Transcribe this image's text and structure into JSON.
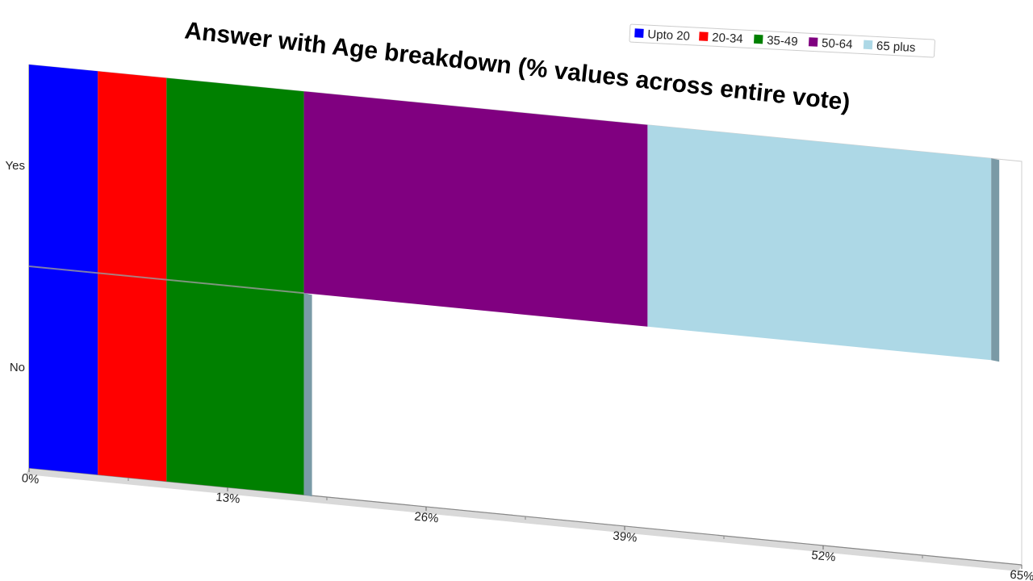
{
  "chart_data": {
    "type": "bar",
    "orientation": "horizontal",
    "stacked": true,
    "title": "Answer with Age breakdown (% values across entire vote)",
    "xlabel": "",
    "ylabel": "",
    "categories": [
      "Yes",
      "No"
    ],
    "x_ticks": [
      "0%",
      "13%",
      "26%",
      "39%",
      "52%",
      "65%"
    ],
    "xlim": [
      0,
      65
    ],
    "legend_position": "top-right",
    "grid": false,
    "series": [
      {
        "name": "Upto 20",
        "color": "#0000ff",
        "values": [
          4.5,
          4.5
        ]
      },
      {
        "name": "20-34",
        "color": "#ff0000",
        "values": [
          4.5,
          4.5
        ]
      },
      {
        "name": "35-49",
        "color": "#008000",
        "values": [
          9,
          9
        ]
      },
      {
        "name": "50-64",
        "color": "#800080",
        "values": [
          22.5,
          0
        ]
      },
      {
        "name": "65 plus",
        "color": "#add8e6",
        "values": [
          22.5,
          0
        ]
      }
    ]
  }
}
